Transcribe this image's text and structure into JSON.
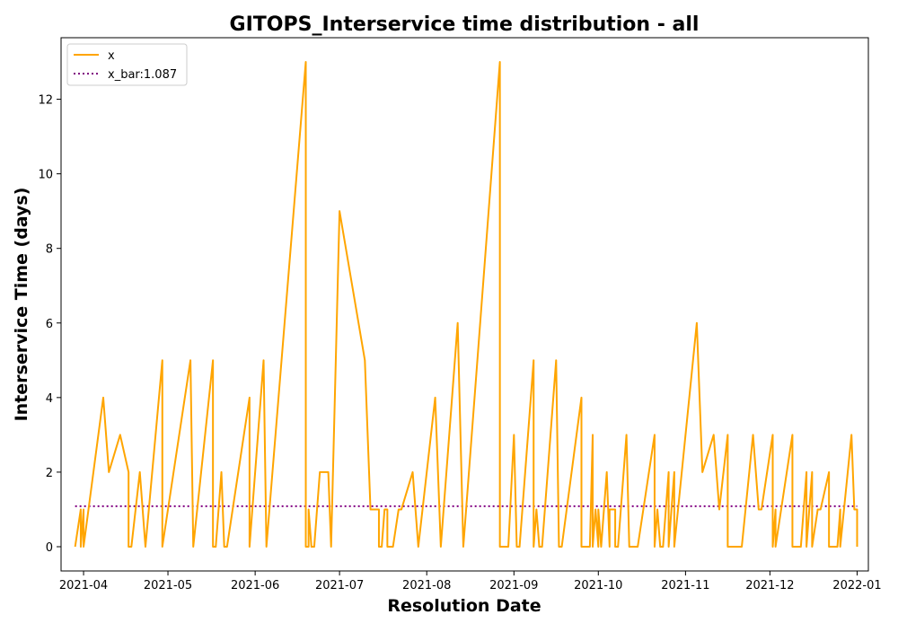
{
  "chart_data": {
    "type": "line",
    "title": "GITOPS_Interservice time distribution - all",
    "xlabel": "Resolution Date",
    "ylabel": "Interservice Time (days)",
    "x_axis_type": "date",
    "xlim": [
      "2021-03-24",
      "2022-01-05"
    ],
    "ylim": [
      -0.65,
      13.65
    ],
    "x_ticks": [
      "2021-04-01",
      "2021-05-01",
      "2021-06-01",
      "2021-07-01",
      "2021-08-01",
      "2021-09-01",
      "2021-10-01",
      "2021-11-01",
      "2021-12-01",
      "2022-01-01"
    ],
    "x_tick_labels": [
      "2021-04",
      "2021-05",
      "2021-06",
      "2021-07",
      "2021-08",
      "2021-09",
      "2021-10",
      "2021-11",
      "2021-12",
      "2022-01"
    ],
    "y_ticks": [
      0,
      2,
      4,
      6,
      8,
      10,
      12
    ],
    "y_tick_labels": [
      "0",
      "2",
      "4",
      "6",
      "8",
      "10",
      "12"
    ],
    "grid": false,
    "legend_position": "top-left",
    "series": [
      {
        "name": "x",
        "color": "#ffa500",
        "style": "solid",
        "points": [
          [
            "2021-03-29",
            0
          ],
          [
            "2021-03-31",
            1
          ],
          [
            "2021-03-31",
            0
          ],
          [
            "2021-04-01",
            1
          ],
          [
            "2021-04-01",
            0
          ],
          [
            "2021-04-08",
            4
          ],
          [
            "2021-04-10",
            2
          ],
          [
            "2021-04-14",
            3
          ],
          [
            "2021-04-17",
            2
          ],
          [
            "2021-04-17",
            0
          ],
          [
            "2021-04-18",
            0
          ],
          [
            "2021-04-21",
            2
          ],
          [
            "2021-04-23",
            0
          ],
          [
            "2021-04-29",
            5
          ],
          [
            "2021-04-29",
            0
          ],
          [
            "2021-05-09",
            5
          ],
          [
            "2021-05-10",
            0
          ],
          [
            "2021-05-17",
            5
          ],
          [
            "2021-05-17",
            0
          ],
          [
            "2021-05-18",
            0
          ],
          [
            "2021-05-20",
            2
          ],
          [
            "2021-05-21",
            0
          ],
          [
            "2021-05-22",
            0
          ],
          [
            "2021-05-30",
            4
          ],
          [
            "2021-05-30",
            0
          ],
          [
            "2021-06-04",
            5
          ],
          [
            "2021-06-05",
            0
          ],
          [
            "2021-06-19",
            13
          ],
          [
            "2021-06-19",
            0
          ],
          [
            "2021-06-20",
            0
          ],
          [
            "2021-06-20",
            1
          ],
          [
            "2021-06-21",
            0
          ],
          [
            "2021-06-22",
            0
          ],
          [
            "2021-06-24",
            2
          ],
          [
            "2021-06-27",
            2
          ],
          [
            "2021-06-28",
            0
          ],
          [
            "2021-07-01",
            9
          ],
          [
            "2021-07-10",
            5
          ],
          [
            "2021-07-12",
            1
          ],
          [
            "2021-07-15",
            1
          ],
          [
            "2021-07-15",
            0
          ],
          [
            "2021-07-16",
            0
          ],
          [
            "2021-07-17",
            1
          ],
          [
            "2021-07-18",
            1
          ],
          [
            "2021-07-18",
            0
          ],
          [
            "2021-07-20",
            0
          ],
          [
            "2021-07-22",
            1
          ],
          [
            "2021-07-23",
            1
          ],
          [
            "2021-07-27",
            2
          ],
          [
            "2021-07-29",
            0
          ],
          [
            "2021-08-04",
            4
          ],
          [
            "2021-08-06",
            0
          ],
          [
            "2021-08-12",
            6
          ],
          [
            "2021-08-14",
            0
          ],
          [
            "2021-08-27",
            13
          ],
          [
            "2021-08-27",
            0
          ],
          [
            "2021-08-30",
            0
          ],
          [
            "2021-09-01",
            3
          ],
          [
            "2021-09-02",
            0
          ],
          [
            "2021-09-03",
            0
          ],
          [
            "2021-09-08",
            5
          ],
          [
            "2021-09-08",
            0
          ],
          [
            "2021-09-09",
            1
          ],
          [
            "2021-09-10",
            0
          ],
          [
            "2021-09-11",
            0
          ],
          [
            "2021-09-16",
            5
          ],
          [
            "2021-09-17",
            0
          ],
          [
            "2021-09-18",
            0
          ],
          [
            "2021-09-25",
            4
          ],
          [
            "2021-09-25",
            0
          ],
          [
            "2021-09-28",
            0
          ],
          [
            "2021-09-29",
            3
          ],
          [
            "2021-09-29",
            0
          ],
          [
            "2021-09-30",
            1
          ],
          [
            "2021-10-01",
            0
          ],
          [
            "2021-10-01",
            1
          ],
          [
            "2021-10-02",
            0
          ],
          [
            "2021-10-03",
            1
          ],
          [
            "2021-10-04",
            2
          ],
          [
            "2021-10-05",
            0
          ],
          [
            "2021-10-05",
            1
          ],
          [
            "2021-10-07",
            1
          ],
          [
            "2021-10-07",
            0
          ],
          [
            "2021-10-08",
            0
          ],
          [
            "2021-10-11",
            3
          ],
          [
            "2021-10-12",
            0
          ],
          [
            "2021-10-15",
            0
          ],
          [
            "2021-10-21",
            3
          ],
          [
            "2021-10-21",
            0
          ],
          [
            "2021-10-22",
            1
          ],
          [
            "2021-10-23",
            0
          ],
          [
            "2021-10-24",
            0
          ],
          [
            "2021-10-26",
            2
          ],
          [
            "2021-10-26",
            0
          ],
          [
            "2021-10-28",
            2
          ],
          [
            "2021-10-28",
            0
          ],
          [
            "2021-11-05",
            6
          ],
          [
            "2021-11-07",
            2
          ],
          [
            "2021-11-11",
            3
          ],
          [
            "2021-11-13",
            1
          ],
          [
            "2021-11-16",
            3
          ],
          [
            "2021-11-16",
            0
          ],
          [
            "2021-11-21",
            0
          ],
          [
            "2021-11-25",
            3
          ],
          [
            "2021-11-27",
            1
          ],
          [
            "2021-11-28",
            1
          ],
          [
            "2021-12-02",
            3
          ],
          [
            "2021-12-02",
            0
          ],
          [
            "2021-12-03",
            1
          ],
          [
            "2021-12-03",
            0
          ],
          [
            "2021-12-09",
            3
          ],
          [
            "2021-12-09",
            0
          ],
          [
            "2021-12-12",
            0
          ],
          [
            "2021-12-14",
            2
          ],
          [
            "2021-12-14",
            0
          ],
          [
            "2021-12-16",
            2
          ],
          [
            "2021-12-16",
            0
          ],
          [
            "2021-12-18",
            1
          ],
          [
            "2021-12-19",
            1
          ],
          [
            "2021-12-22",
            2
          ],
          [
            "2021-12-22",
            0
          ],
          [
            "2021-12-25",
            0
          ],
          [
            "2021-12-26",
            1
          ],
          [
            "2021-12-26",
            0
          ],
          [
            "2021-12-30",
            3
          ],
          [
            "2021-12-31",
            1
          ],
          [
            "2022-01-01",
            1
          ],
          [
            "2022-01-01",
            0
          ]
        ]
      },
      {
        "name": "x_bar:1.087",
        "color": "#800080",
        "style": "dotted",
        "points": [
          [
            "2021-03-29",
            1.087
          ],
          [
            "2022-01-01",
            1.087
          ]
        ]
      }
    ]
  }
}
